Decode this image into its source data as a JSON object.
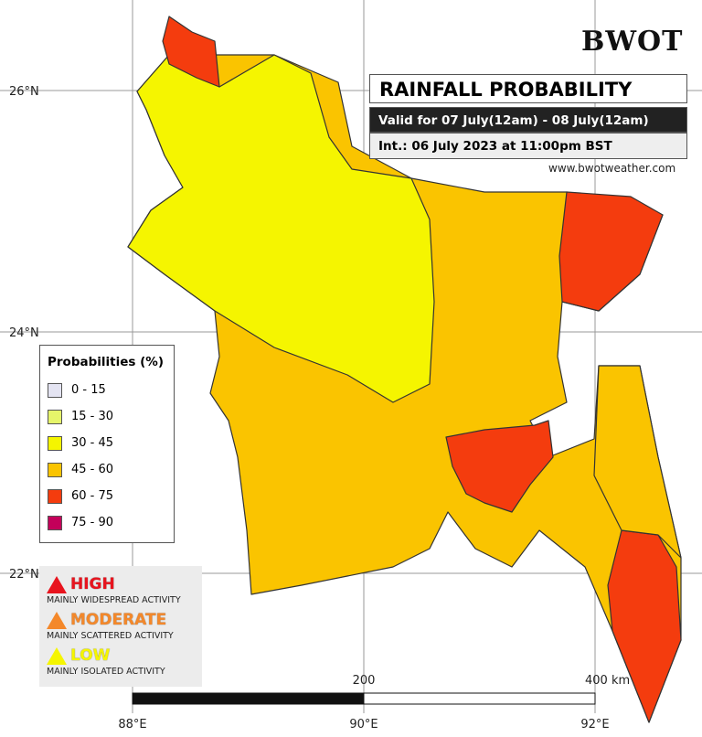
{
  "header": {
    "logo": "BWOT",
    "title": "RAINFALL PROBABILITY",
    "valid": "Valid for 07 July(12am) - 08 July(12am)",
    "issued": "Int.: 06 July 2023 at 11:00pm BST",
    "website": "www.bwotweather.com"
  },
  "axes": {
    "latitudes": [
      "26°N",
      "24°N",
      "22°N"
    ],
    "longitudes": [
      "88°E",
      "90°E",
      "92°E"
    ]
  },
  "legend": {
    "title": "Probabilities (%)",
    "items": [
      {
        "label": "0 - 15",
        "color": "#e4e4f2"
      },
      {
        "label": "15 - 30",
        "color": "#e6f56a"
      },
      {
        "label": "30 - 45",
        "color": "#f5f500"
      },
      {
        "label": "45 - 60",
        "color": "#fac400"
      },
      {
        "label": "60 - 75",
        "color": "#f43c0e"
      },
      {
        "label": "75 - 90",
        "color": "#c4005a"
      }
    ]
  },
  "risk_levels": [
    {
      "level": "HIGH",
      "description": "MAINLY WIDESPREAD ACTIVITY",
      "color": "#e8141e"
    },
    {
      "level": "MODERATE",
      "description": "MAINLY SCATTERED ACTIVITY",
      "color": "#f4882a"
    },
    {
      "level": "LOW",
      "description": "MAINLY ISOLATED ACTIVITY",
      "color": "#f5f500"
    }
  ],
  "scale": {
    "mid": "200",
    "end": "400 km"
  }
}
